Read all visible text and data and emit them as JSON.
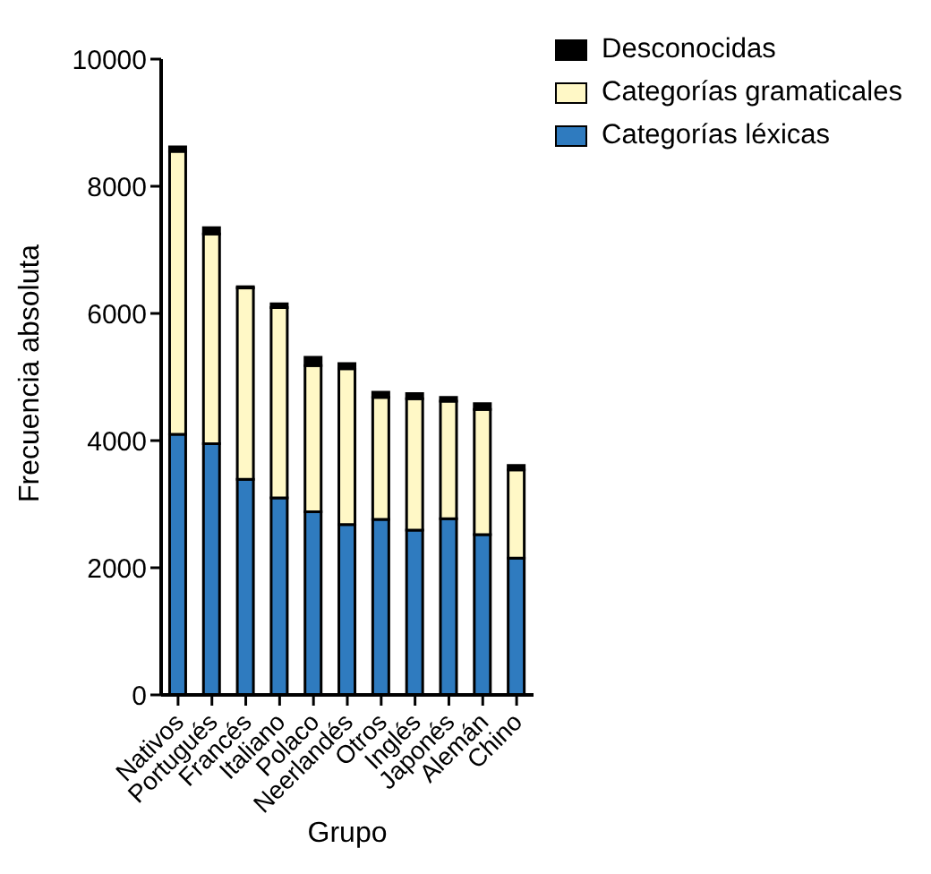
{
  "chart_data": {
    "type": "bar",
    "stacked": true,
    "xlabel": "Grupo",
    "ylabel": "Frecuencia absoluta",
    "categories": [
      "Nativos",
      "Portugués",
      "Francés",
      "Italiano",
      "Polaco",
      "Neerlandés",
      "Otros",
      "Inglés",
      "Japonés",
      "Alemán",
      "Chino"
    ],
    "series": [
      {
        "name": "Categorías léxicas",
        "color": "#2f7bbf",
        "values": [
          4100,
          3950,
          3390,
          3100,
          2880,
          2680,
          2760,
          2590,
          2770,
          2520,
          2150
        ]
      },
      {
        "name": "Categorías gramaticales",
        "color": "#fff8c6",
        "values": [
          4450,
          3300,
          3010,
          2990,
          2300,
          2450,
          1920,
          2070,
          1850,
          1970,
          1390
        ]
      },
      {
        "name": "Desconocidas",
        "color": "#000000",
        "values": [
          70,
          100,
          20,
          60,
          130,
          80,
          80,
          80,
          60,
          90,
          70
        ]
      }
    ],
    "ylim": [
      0,
      10000
    ],
    "yticks": [
      0,
      2000,
      4000,
      6000,
      8000,
      10000
    ],
    "legend": "top right"
  }
}
